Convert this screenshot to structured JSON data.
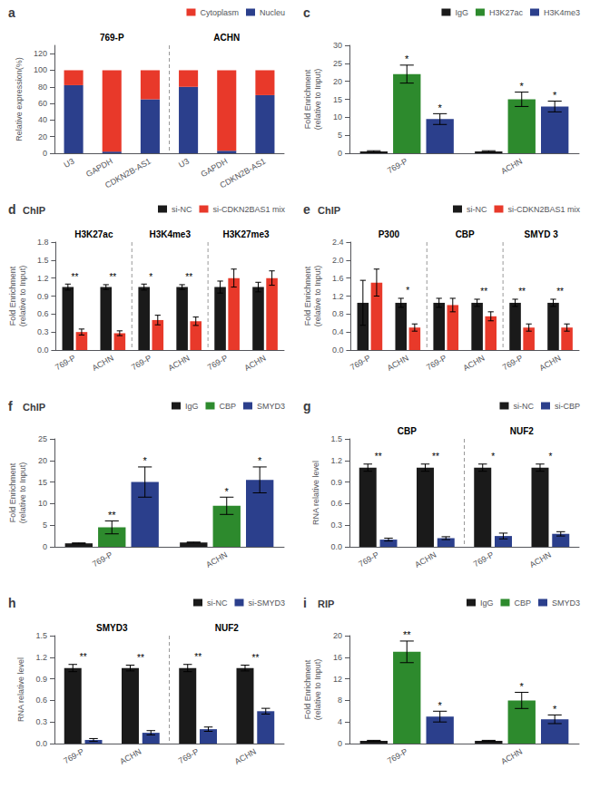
{
  "chart_data": [
    {
      "type": "bar",
      "panel_label": "a",
      "stacked": true,
      "categories": [
        "U3",
        "GAPDH",
        "CDKN2B-AS1",
        "U3",
        "GAPDH",
        "CDKN2B-AS1"
      ],
      "group_labels": [
        "769-P",
        "ACHN"
      ],
      "series": [
        {
          "name": "Nucleu",
          "color": "#2b3f8c",
          "values": [
            82,
            2,
            65,
            80,
            3,
            70
          ]
        },
        {
          "name": "Cytoplasm",
          "color": "#e8392a",
          "values": [
            18,
            98,
            35,
            20,
            97,
            30
          ]
        }
      ],
      "ylabel": "Relative expression(%)",
      "ylim": [
        0,
        130
      ],
      "yticks": [
        0,
        20,
        40,
        60,
        80,
        100,
        120
      ],
      "grid": false,
      "legend": "upper right"
    },
    {
      "type": "bar",
      "panel_label": "c",
      "categories": [
        "769-P",
        "ACHN"
      ],
      "series": [
        {
          "name": "IgG",
          "color": "#1a1a1a",
          "values": [
            0.5,
            0.5
          ],
          "errors": [
            0.2,
            0.2
          ]
        },
        {
          "name": "H3K27ac",
          "color": "#2d8a2d",
          "values": [
            22,
            15
          ],
          "errors": [
            2.5,
            2
          ],
          "annotations": [
            "*",
            "*"
          ]
        },
        {
          "name": "H3K4me3",
          "color": "#2b3f8c",
          "values": [
            9.5,
            13
          ],
          "errors": [
            1.5,
            1.5
          ],
          "annotations": [
            "*",
            "*"
          ]
        }
      ],
      "ylabel": "Fold Enrichment\n(relative to Input)",
      "ylim": [
        0,
        30
      ],
      "yticks": [
        0,
        5,
        10,
        15,
        20,
        25,
        30
      ],
      "grid": false,
      "legend": "upper right"
    },
    {
      "type": "bar",
      "panel_label": "d",
      "title": "ChIP",
      "categories": [
        "769-P",
        "ACHN",
        "769-P",
        "ACHN",
        "769-P",
        "ACHN"
      ],
      "group_labels": [
        "H3K27ac",
        "H3K4me3",
        "H3K27me3"
      ],
      "series": [
        {
          "name": "si-NC",
          "color": "#1a1a1a",
          "values": [
            1.05,
            1.05,
            1.05,
            1.05,
            1.05,
            1.05
          ],
          "errors": [
            0.05,
            0.04,
            0.05,
            0.04,
            0.1,
            0.08
          ]
        },
        {
          "name": "si-CDKN2BAS1 mix",
          "color": "#e8392a",
          "values": [
            0.3,
            0.28,
            0.5,
            0.48,
            1.2,
            1.2
          ],
          "errors": [
            0.05,
            0.04,
            0.08,
            0.07,
            0.15,
            0.12
          ]
        }
      ],
      "annotations": [
        "**",
        "**",
        "*",
        "**",
        null,
        null
      ],
      "ylabel": "Fold Enrichment\n(relative to Input)",
      "ylim": [
        0,
        1.8
      ],
      "yticks": [
        {
          "value": 0,
          "label": "0.0"
        },
        0.3,
        0.6,
        0.9,
        1.2,
        1.5,
        1.8
      ],
      "grid": false,
      "legend": "upper right"
    },
    {
      "type": "bar",
      "panel_label": "e",
      "title": "ChIP",
      "categories": [
        "769-P",
        "ACHN",
        "769-P",
        "ACHN",
        "769-P",
        "ACHN"
      ],
      "group_labels": [
        "P300",
        "CBP",
        "SMYD 3"
      ],
      "series": [
        {
          "name": "si-NC",
          "color": "#1a1a1a",
          "values": [
            1.05,
            1.05,
            1.05,
            1.05,
            1.05,
            1.05
          ],
          "errors": [
            0.5,
            0.1,
            0.1,
            0.08,
            0.08,
            0.08
          ]
        },
        {
          "name": "si-CDKN2BAS1 mix",
          "color": "#e8392a",
          "values": [
            1.5,
            0.5,
            1.0,
            0.75,
            0.5,
            0.5
          ],
          "errors": [
            0.3,
            0.08,
            0.15,
            0.1,
            0.08,
            0.08
          ]
        }
      ],
      "annotations": [
        null,
        "*",
        null,
        "**",
        "**",
        "**"
      ],
      "ylabel": "Fold Enrichment\n(relative to Input)",
      "ylim": [
        0,
        2.4
      ],
      "yticks": [
        {
          "value": 0,
          "label": "0.0"
        },
        0.4,
        0.8,
        1.2,
        1.6,
        {
          "value": 2,
          "label": "2.0"
        },
        2.4
      ],
      "grid": false,
      "legend": "upper right"
    },
    {
      "type": "bar",
      "panel_label": "f",
      "title": "ChIP",
      "categories": [
        "769-P",
        "ACHN"
      ],
      "series": [
        {
          "name": "IgG",
          "color": "#1a1a1a",
          "values": [
            0.8,
            1.0
          ],
          "errors": [
            0.1,
            0.1
          ]
        },
        {
          "name": "CBP",
          "color": "#2d8a2d",
          "values": [
            4.5,
            9.5
          ],
          "errors": [
            1.5,
            2.0
          ],
          "annotations": [
            "**",
            "*"
          ]
        },
        {
          "name": "SMYD3",
          "color": "#2b3f8c",
          "values": [
            15,
            15.5
          ],
          "errors": [
            3.5,
            3.0
          ],
          "annotations": [
            "*",
            "*"
          ]
        }
      ],
      "ylabel": "Fold Enrichment\n(relative to Input)",
      "ylim": [
        0,
        25
      ],
      "yticks": [
        0,
        5,
        10,
        15,
        20,
        25
      ],
      "grid": false,
      "legend": "upper right"
    },
    {
      "type": "bar",
      "panel_label": "g",
      "categories": [
        "769-P",
        "ACHN",
        "769-P",
        "ACHN"
      ],
      "group_labels": [
        "CBP",
        "NUF2"
      ],
      "series": [
        {
          "name": "si-NC",
          "color": "#1a1a1a",
          "values": [
            1.1,
            1.1,
            1.1,
            1.1
          ],
          "errors": [
            0.05,
            0.05,
            0.05,
            0.05
          ]
        },
        {
          "name": "si-CBP",
          "color": "#2b3f8c",
          "values": [
            0.1,
            0.12,
            0.15,
            0.18
          ],
          "errors": [
            0.02,
            0.02,
            0.04,
            0.03
          ]
        }
      ],
      "annotations": [
        "**",
        "**",
        "*",
        "*"
      ],
      "ylabel": "RNA relative level",
      "ylim": [
        0,
        1.5
      ],
      "yticks": [
        {
          "value": 0,
          "label": "0.0"
        },
        0.3,
        0.6,
        0.9,
        1.2,
        1.5
      ],
      "grid": false,
      "legend": "upper right"
    },
    {
      "type": "bar",
      "panel_label": "h",
      "categories": [
        "769-P",
        "ACHN",
        "769-P",
        "ACHN"
      ],
      "group_labels": [
        "SMYD3",
        "NUF2"
      ],
      "series": [
        {
          "name": "si-NC",
          "color": "#1a1a1a",
          "values": [
            1.05,
            1.05,
            1.05,
            1.05
          ],
          "errors": [
            0.05,
            0.04,
            0.05,
            0.04
          ]
        },
        {
          "name": "si-SMYD3",
          "color": "#2b3f8c",
          "values": [
            0.05,
            0.15,
            0.2,
            0.45
          ],
          "errors": [
            0.02,
            0.03,
            0.03,
            0.04
          ]
        }
      ],
      "annotations": [
        "**",
        "**",
        "**",
        "**"
      ],
      "ylabel": "RNA relative level",
      "ylim": [
        0,
        1.5
      ],
      "yticks": [
        {
          "value": 0,
          "label": "0.0"
        },
        0.3,
        0.6,
        0.9,
        1.2,
        1.5
      ],
      "grid": false,
      "legend": "upper right"
    },
    {
      "type": "bar",
      "panel_label": "i",
      "title": "RIP",
      "categories": [
        "769-P",
        "ACHN"
      ],
      "series": [
        {
          "name": "IgG",
          "color": "#1a1a1a",
          "values": [
            0.5,
            0.5
          ],
          "errors": [
            0.1,
            0.1
          ]
        },
        {
          "name": "CBP",
          "color": "#2d8a2d",
          "values": [
            17,
            8
          ],
          "errors": [
            2,
            1.5
          ],
          "annotations": [
            "**",
            "*"
          ]
        },
        {
          "name": "SMYD3",
          "color": "#2b3f8c",
          "values": [
            5,
            4.5
          ],
          "errors": [
            1.0,
            0.8
          ],
          "annotations": [
            "*",
            "*"
          ]
        }
      ],
      "ylabel": "Fold Enrichment\n(relative to Input)",
      "ylim": [
        0,
        20
      ],
      "yticks": [
        0,
        4,
        8,
        12,
        16,
        20
      ],
      "grid": false,
      "legend": "upper right"
    }
  ]
}
